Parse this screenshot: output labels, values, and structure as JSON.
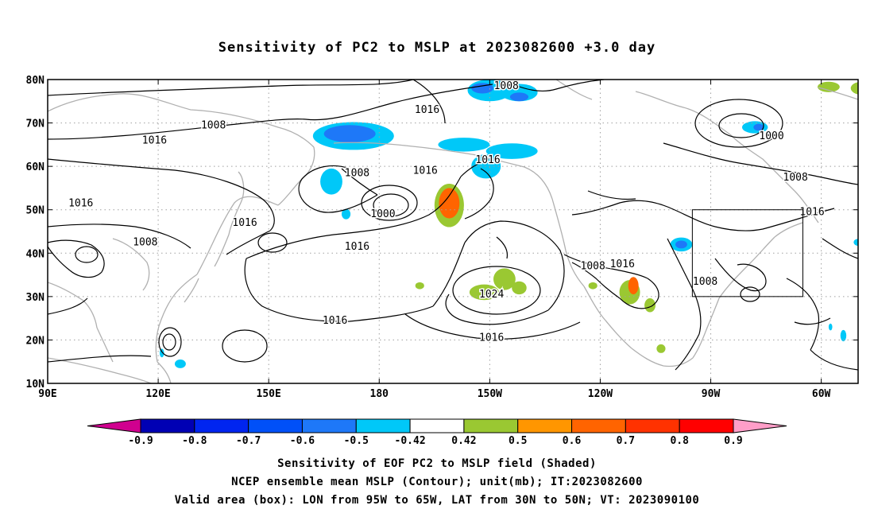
{
  "title": "Sensitivity of PC2 to MSLP at 2023082600 +3.0 day",
  "map": {
    "lat_labels": [
      "10N",
      "20N",
      "30N",
      "40N",
      "50N",
      "60N",
      "70N",
      "80N"
    ],
    "lon_labels": [
      "90E",
      "120E",
      "150E",
      "180",
      "150W",
      "120W",
      "90W",
      "60W"
    ],
    "contour_labels": [
      {
        "text": "1008",
        "lon": -145.5,
        "lat": 78.5
      },
      {
        "text": "1016",
        "lon": -167,
        "lat": 73
      },
      {
        "text": "1008",
        "lon": 135,
        "lat": 69.5
      },
      {
        "text": "1016",
        "lon": 119,
        "lat": 66
      },
      {
        "text": "1008",
        "lon": 174,
        "lat": 58.5
      },
      {
        "text": "1016",
        "lon": -167.5,
        "lat": 59
      },
      {
        "text": "1016",
        "lon": -150.5,
        "lat": 61.5
      },
      {
        "text": "1016",
        "lon": 99,
        "lat": 51.5
      },
      {
        "text": "1000",
        "lon": -179,
        "lat": 49
      },
      {
        "text": "1016",
        "lon": 143.5,
        "lat": 47
      },
      {
        "text": "1008",
        "lon": 116.5,
        "lat": 42.5
      },
      {
        "text": "1016",
        "lon": 174,
        "lat": 41.5
      },
      {
        "text": "1008",
        "lon": -122,
        "lat": 37
      },
      {
        "text": "1016",
        "lon": -114,
        "lat": 37.5
      },
      {
        "text": "1024",
        "lon": -149.5,
        "lat": 30.5
      },
      {
        "text": "1016",
        "lon": 168,
        "lat": 24.5
      },
      {
        "text": "1016",
        "lon": -149.5,
        "lat": 20.5
      },
      {
        "text": "1000",
        "lon": -73.5,
        "lat": 67
      },
      {
        "text": "1008",
        "lon": -67,
        "lat": 57.5
      },
      {
        "text": "1016",
        "lon": -62.5,
        "lat": 49.5
      },
      {
        "text": "1008",
        "lon": -91.5,
        "lat": 33.5
      }
    ],
    "valid_box": {
      "lon_min": -95,
      "lon_max": -65,
      "lat_min": 30,
      "lat_max": 50
    },
    "shaded_regions": [
      {
        "level": -0.5,
        "lon": -150,
        "lat": 77.5,
        "rx": 6,
        "ry": 2.5
      },
      {
        "level": -0.6,
        "lon": -152,
        "lat": 78,
        "rx": 3,
        "ry": 1.2
      },
      {
        "level": -0.5,
        "lon": -142,
        "lat": 77,
        "rx": 5,
        "ry": 2
      },
      {
        "level": -0.6,
        "lon": -142,
        "lat": 76,
        "rx": 2.5,
        "ry": 1
      },
      {
        "level": -0.5,
        "lon": 173,
        "lat": 67,
        "rx": 11,
        "ry": 3.2
      },
      {
        "level": -0.6,
        "lon": 172,
        "lat": 67.5,
        "rx": 7,
        "ry": 2
      },
      {
        "level": -0.5,
        "lon": -157,
        "lat": 65,
        "rx": 7,
        "ry": 1.6
      },
      {
        "level": -0.5,
        "lon": -144,
        "lat": 63.5,
        "rx": 7,
        "ry": 1.8
      },
      {
        "level": -0.5,
        "lon": -151,
        "lat": 60,
        "rx": 4,
        "ry": 2.8
      },
      {
        "level": -0.5,
        "lon": 167,
        "lat": 56.5,
        "rx": 3,
        "ry": 3
      },
      {
        "level": -0.5,
        "lon": 171,
        "lat": 49,
        "rx": 1.2,
        "ry": 1.2
      },
      {
        "level": 0.42,
        "lon": -161,
        "lat": 51,
        "rx": 4,
        "ry": 5
      },
      {
        "level": 0.6,
        "lon": -161,
        "lat": 51.5,
        "rx": 2.8,
        "ry": 3.5
      },
      {
        "level": 0.42,
        "lon": -146,
        "lat": 34,
        "rx": 3,
        "ry": 2.5
      },
      {
        "level": 0.42,
        "lon": -151.5,
        "lat": 31,
        "rx": 4,
        "ry": 1.8
      },
      {
        "level": 0.42,
        "lon": -142,
        "lat": 32,
        "rx": 2,
        "ry": 1.5
      },
      {
        "level": 0.42,
        "lon": -169,
        "lat": 32.5,
        "rx": 1.2,
        "ry": 0.8
      },
      {
        "level": 0.42,
        "lon": -112,
        "lat": 31,
        "rx": 2.8,
        "ry": 2.8
      },
      {
        "level": 0.6,
        "lon": -111,
        "lat": 32.5,
        "rx": 1.4,
        "ry": 2
      },
      {
        "level": 0.42,
        "lon": -106.5,
        "lat": 28,
        "rx": 1.5,
        "ry": 1.6
      },
      {
        "level": 0.42,
        "lon": -103.5,
        "lat": 18,
        "rx": 1.2,
        "ry": 1
      },
      {
        "level": 0.42,
        "lon": -122,
        "lat": 32.5,
        "rx": 1.2,
        "ry": 0.8
      },
      {
        "level": -0.5,
        "lon": -98,
        "lat": 42,
        "rx": 3,
        "ry": 1.6
      },
      {
        "level": -0.6,
        "lon": -98,
        "lat": 42,
        "rx": 1.6,
        "ry": 0.9
      },
      {
        "level": -0.5,
        "lon": -78,
        "lat": 69,
        "rx": 3.5,
        "ry": 1.4
      },
      {
        "level": -0.6,
        "lon": -77,
        "lat": 69,
        "rx": 1.4,
        "ry": 0.8
      },
      {
        "level": 0.42,
        "lon": -58,
        "lat": 78.3,
        "rx": 3,
        "ry": 1.2
      },
      {
        "level": 0.42,
        "lon": -49,
        "lat": 78,
        "rx": 3,
        "ry": 1.5
      },
      {
        "level": -0.5,
        "lon": -50,
        "lat": 42.5,
        "rx": 1.2,
        "ry": 0.8
      },
      {
        "level": -0.5,
        "lon": -46,
        "lat": 16,
        "rx": 1.5,
        "ry": 1.5
      },
      {
        "level": -0.5,
        "lon": -54,
        "lat": 21,
        "rx": 0.8,
        "ry": 1.3
      },
      {
        "level": -0.5,
        "lon": -57.5,
        "lat": 23,
        "rx": 0.5,
        "ry": 0.8
      },
      {
        "level": -0.5,
        "lon": 126,
        "lat": 14.5,
        "rx": 1.5,
        "ry": 1
      },
      {
        "level": -0.5,
        "lon": 121,
        "lat": 17,
        "rx": 0.6,
        "ry": 1
      }
    ]
  },
  "colorbar": {
    "ticks": [
      "-0.9",
      "-0.8",
      "-0.7",
      "-0.6",
      "-0.5",
      "-0.42",
      "0.42",
      "0.5",
      "0.6",
      "0.7",
      "0.8",
      "0.9"
    ],
    "colors": [
      "#d0008f",
      "#0000b4",
      "#0025f0",
      "#0050f8",
      "#1e78f8",
      "#00c8f8",
      "#ffffff",
      "#9ac832",
      "#ff9600",
      "#ff6400",
      "#ff3200",
      "#ff0000",
      "#ff9ec8"
    ]
  },
  "captions": {
    "line1": "Sensitivity of EOF PC2 to MSLP field (Shaded)",
    "line2": "NCEP ensemble mean MSLP (Contour); unit(mb); IT:2023082600",
    "line3": "Valid area (box): LON from 95W to 65W, LAT from 30N to 50N; VT: 2023090100"
  }
}
